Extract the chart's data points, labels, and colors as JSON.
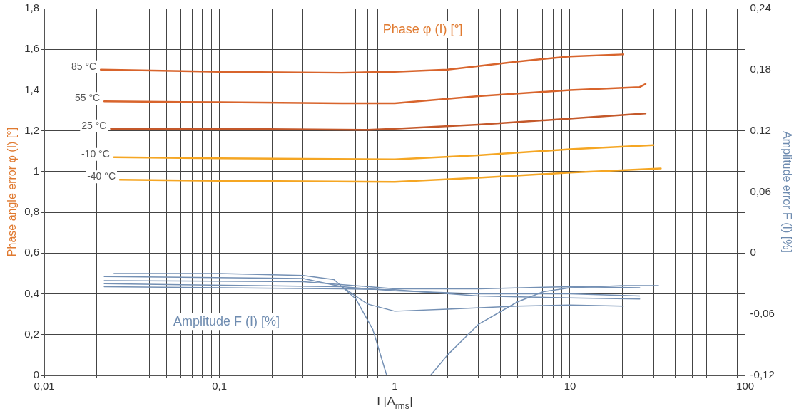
{
  "chart_data": {
    "type": "line",
    "xlabel": "I [A$_{rms}$]",
    "ylabel": "Phase angle error φ (I) [°]",
    "y2label": "Amplitude error F (I) [%]",
    "annotations": [
      "Phase φ (I) [°]",
      "Amplitude F (I) [%]"
    ],
    "log": "x",
    "grid": true,
    "marker": "none",
    "line_style": "solid",
    "xlim": [
      0.01,
      100
    ],
    "xticks": [
      {
        "value": 0.01,
        "label": "0,01"
      },
      {
        "value": 0.02,
        "label": null
      },
      {
        "value": 0.03,
        "label": null
      },
      {
        "value": 0.04,
        "label": null
      },
      {
        "value": 0.05,
        "label": null
      },
      {
        "value": 0.06,
        "label": null
      },
      {
        "value": 0.07,
        "label": null
      },
      {
        "value": 0.08,
        "label": null
      },
      {
        "value": 0.09,
        "label": null
      },
      {
        "value": 0.1,
        "label": "0,1"
      },
      {
        "value": 0.2,
        "label": null
      },
      {
        "value": 0.3,
        "label": null
      },
      {
        "value": 0.4,
        "label": null
      },
      {
        "value": 0.5,
        "label": null
      },
      {
        "value": 0.6,
        "label": null
      },
      {
        "value": 0.7,
        "label": null
      },
      {
        "value": 0.8,
        "label": null
      },
      {
        "value": 0.9,
        "label": null
      },
      1,
      {
        "value": 2,
        "label": null
      },
      {
        "value": 3,
        "label": null
      },
      {
        "value": 4,
        "label": null
      },
      {
        "value": 5,
        "label": null
      },
      {
        "value": 6,
        "label": null
      },
      {
        "value": 7,
        "label": null
      },
      {
        "value": 8,
        "label": null
      },
      {
        "value": 9,
        "label": null
      },
      10,
      {
        "value": 20,
        "label": null
      },
      {
        "value": 30,
        "label": null
      },
      {
        "value": 40,
        "label": null
      },
      {
        "value": 50,
        "label": null
      },
      {
        "value": 60,
        "label": null
      },
      {
        "value": 70,
        "label": null
      },
      {
        "value": 80,
        "label": null
      },
      {
        "value": 90,
        "label": null
      },
      100
    ],
    "ylim": [
      0,
      1.8
    ],
    "yticks": [
      0,
      {
        "value": 0.2,
        "label": "0,2"
      },
      {
        "value": 0.4,
        "label": "0,4"
      },
      {
        "value": 0.6,
        "label": "0,6"
      },
      {
        "value": 0.8,
        "label": "0,8"
      },
      1,
      {
        "value": 1.2,
        "label": "1,2"
      },
      {
        "value": 1.4,
        "label": "1,4"
      },
      {
        "value": 1.6,
        "label": "1,6"
      },
      {
        "value": 1.8,
        "label": "1,8"
      }
    ],
    "y2lim": [
      -0.12,
      0.24
    ],
    "y2ticks": [
      {
        "value": -0.12,
        "label": "-0,12"
      },
      {
        "value": -0.06,
        "label": "-0,06"
      },
      0,
      {
        "value": 0.06,
        "label": "0,06"
      },
      {
        "value": 0.12,
        "label": "0,12"
      },
      {
        "value": 0.18,
        "label": "0,18"
      },
      {
        "value": 0.24,
        "label": "0,24"
      }
    ],
    "series": [
      {
        "name": "85 °C",
        "color": "#d8642c",
        "x": [
          0.021,
          0.1,
          0.5,
          1,
          2,
          5,
          10,
          20
        ],
        "values": [
          1.5,
          1.49,
          1.485,
          1.49,
          1.5,
          1.54,
          1.565,
          1.575
        ]
      },
      {
        "name": "55 °C",
        "color": "#d8642c",
        "x": [
          0.022,
          0.1,
          0.5,
          1,
          3,
          10,
          25,
          27
        ],
        "values": [
          1.345,
          1.34,
          1.335,
          1.335,
          1.37,
          1.4,
          1.415,
          1.43
        ]
      },
      {
        "name": "25 °C",
        "color": "#c4582a",
        "x": [
          0.024,
          0.1,
          0.7,
          1,
          3,
          10,
          27
        ],
        "values": [
          1.21,
          1.21,
          1.205,
          1.21,
          1.23,
          1.26,
          1.285
        ]
      },
      {
        "name": "-10 °C",
        "color": "#f5a623",
        "x": [
          0.025,
          0.1,
          1,
          3,
          10,
          30
        ],
        "values": [
          1.07,
          1.065,
          1.06,
          1.08,
          1.11,
          1.13
        ]
      },
      {
        "name": "-40 °C",
        "color": "#f5a623",
        "x": [
          0.027,
          0.1,
          1,
          3,
          10,
          33
        ],
        "values": [
          0.96,
          0.955,
          0.95,
          0.97,
          0.995,
          1.015
        ]
      },
      {
        "color": "#7490b4",
        "axis": "y2",
        "x": [
          0.025,
          0.1,
          0.3,
          0.45,
          0.6,
          0.75,
          0.9,
          1.2,
          1.6,
          2,
          3,
          5,
          7,
          10,
          20,
          32
        ],
        "values": [
          -0.02,
          -0.02,
          -0.022,
          -0.026,
          -0.045,
          -0.075,
          -0.12,
          null,
          -0.12,
          -0.1,
          -0.07,
          -0.048,
          -0.038,
          -0.034,
          -0.032,
          -0.032
        ]
      },
      {
        "color": "#7490b4",
        "axis": "y2",
        "x": [
          0.022,
          0.3,
          0.5,
          0.7,
          1,
          2,
          5,
          10,
          20
        ],
        "values": [
          -0.023,
          -0.025,
          -0.033,
          -0.05,
          -0.057,
          -0.055,
          -0.052,
          -0.051,
          -0.052
        ]
      },
      {
        "color": "#7490b4",
        "axis": "y2",
        "x": [
          0.022,
          0.3,
          1,
          3,
          10,
          25
        ],
        "values": [
          -0.027,
          -0.028,
          -0.035,
          -0.035,
          -0.033,
          -0.034
        ]
      },
      {
        "color": "#7490b4",
        "axis": "y2",
        "x": [
          0.022,
          0.5,
          1,
          3,
          10,
          25
        ],
        "values": [
          -0.03,
          -0.033,
          -0.037,
          -0.04,
          -0.04,
          -0.042
        ]
      },
      {
        "color": "#7490b4",
        "axis": "y2",
        "x": [
          0.022,
          0.5,
          1,
          3,
          10,
          25
        ],
        "values": [
          -0.033,
          -0.035,
          -0.036,
          -0.042,
          -0.044,
          -0.045
        ]
      }
    ]
  }
}
